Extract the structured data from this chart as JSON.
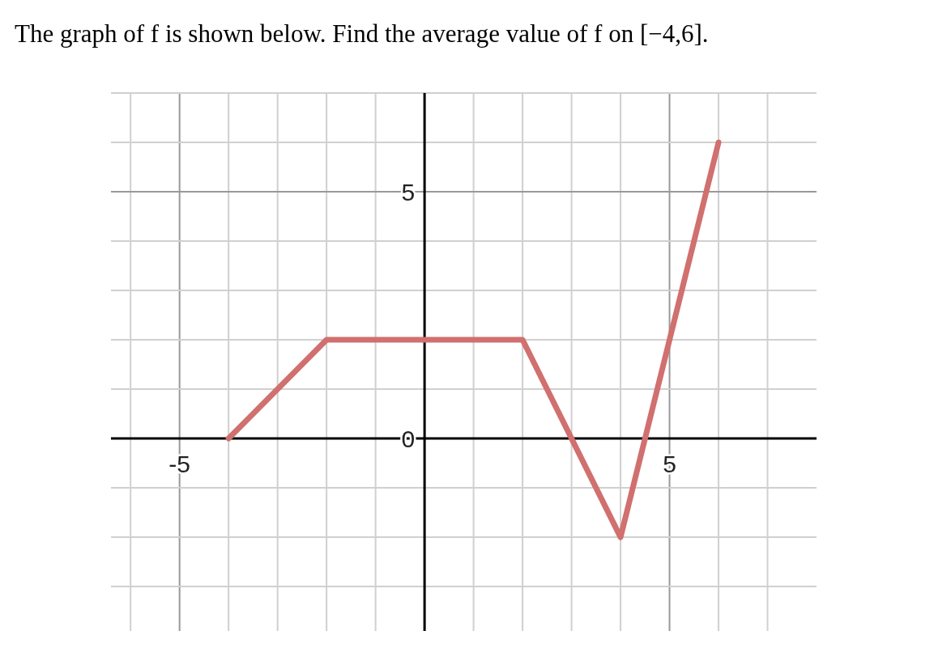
{
  "chart_data": {
    "type": "line",
    "title": "The graph of f is shown below. Find the average value of f on [−4,6].",
    "x": [
      -4,
      -2,
      2,
      4,
      6
    ],
    "values": [
      0,
      2,
      2,
      -2,
      6
    ],
    "color": "#d0706f",
    "marker": "none",
    "line_style": "solid",
    "grid": true,
    "xlim": [
      -6.4,
      8
    ],
    "ylim": [
      -3.9,
      7
    ],
    "xticks": [
      {
        "value": -6,
        "label": null
      },
      -5,
      {
        "value": -4,
        "label": null
      },
      {
        "value": -3,
        "label": null
      },
      {
        "value": -2,
        "label": null
      },
      {
        "value": -1,
        "label": null
      },
      {
        "value": 0,
        "label": null
      },
      {
        "value": 1,
        "label": null
      },
      {
        "value": 2,
        "label": null
      },
      {
        "value": 3,
        "label": null
      },
      {
        "value": 4,
        "label": null
      },
      5,
      {
        "value": 6,
        "label": null
      },
      {
        "value": 7,
        "label": null
      }
    ],
    "yticks": [
      {
        "value": -3,
        "label": null
      },
      {
        "value": -2,
        "label": null
      },
      {
        "value": -1,
        "label": null
      },
      0,
      {
        "value": 1,
        "label": null
      },
      {
        "value": 2,
        "label": null
      },
      {
        "value": 3,
        "label": null
      },
      {
        "value": 4,
        "label": null
      },
      5,
      {
        "value": 6,
        "label": null
      },
      {
        "value": 7,
        "label": null
      }
    ]
  }
}
